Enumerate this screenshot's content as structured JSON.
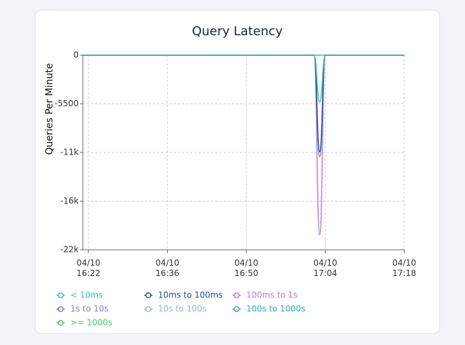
{
  "chart_data": {
    "type": "line",
    "title": "Query Latency",
    "y_label": "Queries Per Minute",
    "x": [
      "04/10 16:21",
      "04/10 17:02",
      "04/10 17:03",
      "04/10 17:04",
      "04/10 17:18"
    ],
    "xlim": [
      "04/10 16:21",
      "04/10 17:18"
    ],
    "xticks": [
      "04/10 16:22",
      "04/10 16:36",
      "04/10 16:50",
      "04/10 17:04",
      "04/10 17:18"
    ],
    "ylim": [
      -22000,
      0
    ],
    "yticks": [
      {
        "value": -22000,
        "label": "-22k"
      },
      {
        "value": -16500,
        "label": "-16k"
      },
      {
        "value": -11000,
        "label": "-11k"
      },
      -5500,
      0
    ],
    "grid": true,
    "series": [
      {
        "name": "< 10ms",
        "color": "#33c9a8",
        "values": [
          0,
          0,
          -5300,
          0,
          0
        ]
      },
      {
        "name": "10ms to 100ms",
        "color": "#1f4fae",
        "values": [
          0,
          0,
          -10900,
          0,
          0
        ]
      },
      {
        "name": "100ms to 1s",
        "color": "#b47be9",
        "values": [
          0,
          0,
          -20300,
          0,
          0
        ]
      },
      {
        "name": "1s to 10s",
        "color": "#7b7fe2",
        "values": [
          0,
          0,
          -11500,
          0,
          0
        ]
      },
      {
        "name": "10s to 100s",
        "color": "#8fb9ec",
        "values": [
          0,
          0,
          0,
          0,
          0
        ]
      },
      {
        "name": "100s to 1000s",
        "color": "#25b3d3",
        "values": [
          0,
          0,
          0,
          0,
          0
        ]
      },
      {
        "name": ">= 1000s",
        "color": "#3fcf6b",
        "values": [
          0,
          0,
          0,
          0,
          0
        ]
      }
    ]
  }
}
